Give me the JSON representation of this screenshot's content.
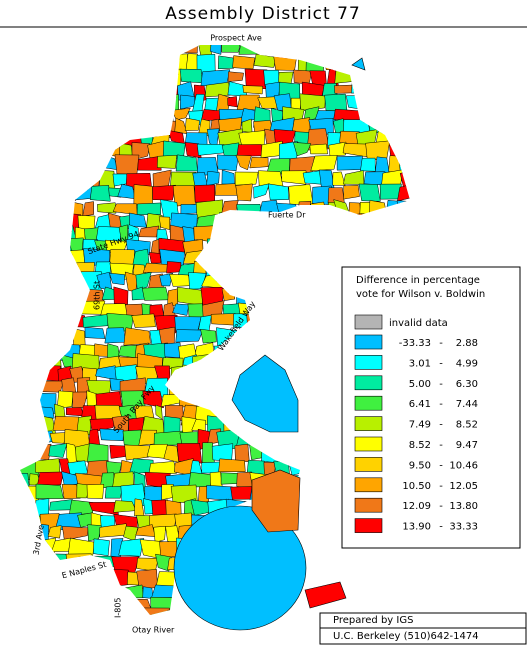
{
  "title": "Assembly District 77",
  "streets": [
    "Prospect Ave",
    "Fuerte Dr",
    "State Hwy 94",
    "69th St",
    "Wakefield Way",
    "South Bay Fwy",
    "3rd Ave",
    "E Naples St",
    "I-805",
    "Otay River"
  ],
  "legend": {
    "title": [
      "Difference in percentage",
      "vote for Wilson v. Boldwin"
    ],
    "separator": "-",
    "invalid": {
      "label": "invalid data",
      "color": "#b4b4b4"
    },
    "entries": [
      {
        "low": "-33.33",
        "high": "2.88",
        "color": "#00bfff"
      },
      {
        "low": "3.01",
        "high": "4.99",
        "color": "#00ffff"
      },
      {
        "low": "5.00",
        "high": "6.30",
        "color": "#00eca0"
      },
      {
        "low": "6.41",
        "high": "7.44",
        "color": "#40f040"
      },
      {
        "low": "7.49",
        "high": "8.52",
        "color": "#b8f000"
      },
      {
        "low": "8.52",
        "high": "9.47",
        "color": "#ffff00"
      },
      {
        "low": "9.50",
        "high": "10.46",
        "color": "#ffd200"
      },
      {
        "low": "10.50",
        "high": "12.05",
        "color": "#ffa500"
      },
      {
        "low": "12.09",
        "high": "13.80",
        "color": "#f07818"
      },
      {
        "low": "13.90",
        "high": "33.33",
        "color": "#ff0000"
      }
    ]
  },
  "footer": {
    "prepared": "Prepared by IGS",
    "contact": "U.C. Berkeley (510)642-1474"
  }
}
